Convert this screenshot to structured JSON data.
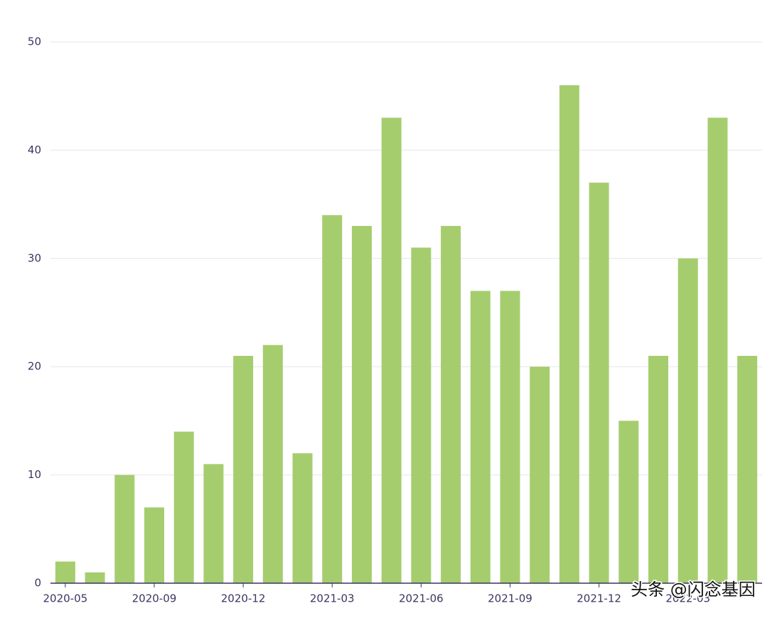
{
  "chart_data": {
    "type": "bar",
    "categories": [
      "2020-05",
      null,
      null,
      "2020-09",
      null,
      null,
      "2020-12",
      null,
      null,
      "2021-03",
      null,
      null,
      "2021-06",
      null,
      null,
      "2021-09",
      null,
      null,
      "2021-12",
      null,
      null,
      "2022-03",
      null,
      null
    ],
    "values": [
      2,
      1,
      10,
      7,
      14,
      11,
      21,
      22,
      12,
      34,
      33,
      43,
      31,
      33,
      27,
      27,
      20,
      46,
      37,
      15,
      21,
      30,
      43,
      21
    ],
    "color": "#a5cd6e",
    "ylim": [
      0,
      50
    ],
    "yticks": [
      0,
      10,
      20,
      30,
      40,
      50
    ],
    "grid": true,
    "watermark": "头条 @闪念基因"
  }
}
